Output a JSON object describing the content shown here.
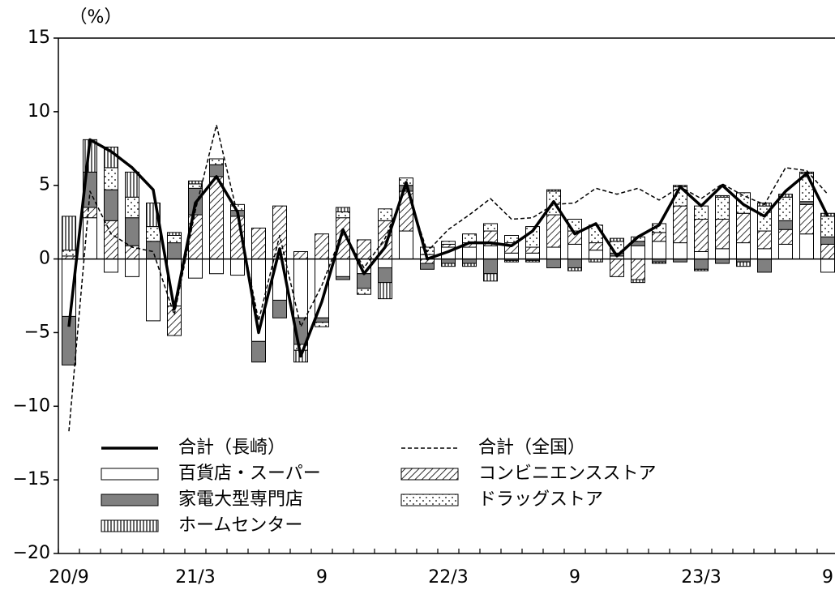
{
  "chart_data": {
    "type": "bar",
    "y_unit": "（%）",
    "categories": [
      "20/9",
      null,
      null,
      null,
      null,
      null,
      "21/3",
      null,
      null,
      null,
      null,
      null,
      "9",
      null,
      null,
      null,
      null,
      null,
      "22/3",
      null,
      null,
      null,
      null,
      null,
      "9",
      null,
      null,
      null,
      null,
      null,
      "23/3",
      null,
      null,
      null,
      null,
      null,
      "9"
    ],
    "ylim": [
      -20,
      15
    ],
    "yticks": [
      {
        "value": -20,
        "label": "−20"
      },
      {
        "value": -15,
        "label": "−15"
      },
      {
        "value": -10,
        "label": "−10"
      },
      {
        "value": -5,
        "label": "−5"
      },
      0,
      5,
      10,
      15
    ],
    "series": [
      {
        "name": "合計（長崎）",
        "type": "line",
        "dash": "solid",
        "color": "#000000",
        "values": [
          -4.6,
          8.1,
          7.3,
          6.2,
          4.7,
          -3.4,
          3.8,
          5.6,
          3.2,
          -5.0,
          0.7,
          -6.6,
          -2.9,
          2.0,
          -1.0,
          0.8,
          5.2,
          0.0,
          0.5,
          1.1,
          1.1,
          0.9,
          1.9,
          3.9,
          1.7,
          2.4,
          0.2,
          1.5,
          2.3,
          4.9,
          3.6,
          5.0,
          3.7,
          2.9,
          4.6,
          5.8,
          2.9
        ]
      },
      {
        "name": "合計（全国）",
        "type": "line",
        "dash": "dashed",
        "color": "#000000",
        "values": [
          -11.7,
          4.6,
          1.7,
          0.8,
          0.5,
          -3.8,
          3.3,
          9.1,
          3.0,
          -4.2,
          1.6,
          -4.6,
          -1.8,
          1.9,
          -0.6,
          1.4,
          4.9,
          0.5,
          2.0,
          3.0,
          4.1,
          2.7,
          2.8,
          3.7,
          3.8,
          4.8,
          4.4,
          4.8,
          4.0,
          4.9,
          4.1,
          5.1,
          4.3,
          3.7,
          6.2,
          6.0,
          4.4
        ]
      },
      {
        "name": "百貨店・スーパー",
        "type": "bar",
        "pattern": "plain",
        "color": "#ffffff",
        "values": [
          -3.9,
          2.8,
          -0.9,
          -1.2,
          -4.2,
          -3.2,
          -1.3,
          -1.0,
          -1.1,
          -5.6,
          -2.8,
          -4.0,
          -4.0,
          -1.2,
          -1.0,
          -0.6,
          1.9,
          0.3,
          0.8,
          0.8,
          0.9,
          0.4,
          0.4,
          0.8,
          1.0,
          0.6,
          0.2,
          0.9,
          1.2,
          1.1,
          0.5,
          0.7,
          1.1,
          0.7,
          1.0,
          1.7,
          -0.9
        ]
      },
      {
        "name": "コンビニエンスストア",
        "type": "bar",
        "pattern": "diagonal",
        "color": "#ffffff",
        "values": [
          0.2,
          0.7,
          2.6,
          0.9,
          0.0,
          -2.0,
          3.0,
          5.6,
          2.9,
          2.1,
          3.6,
          0.5,
          1.7,
          2.8,
          1.3,
          2.6,
          2.7,
          -0.3,
          0.2,
          0.3,
          1.0,
          0.7,
          0.4,
          2.2,
          0.9,
          0.5,
          -1.2,
          -1.4,
          0.6,
          2.5,
          2.2,
          2.0,
          2.0,
          1.2,
          1.0,
          2.0,
          1.0
        ]
      },
      {
        "name": "家電大型専門店",
        "type": "bar",
        "pattern": "plain",
        "color": "#808080",
        "values": [
          -3.3,
          2.4,
          2.1,
          1.9,
          1.2,
          1.1,
          1.8,
          0.8,
          0.4,
          -1.4,
          -1.2,
          -1.8,
          -0.3,
          -0.2,
          -1.0,
          -1.0,
          0.4,
          -0.4,
          -0.3,
          -0.3,
          -1.0,
          -0.1,
          -0.1,
          -0.6,
          -0.6,
          0.0,
          0.2,
          0.3,
          -0.2,
          -0.2,
          -0.7,
          -0.3,
          -0.2,
          -0.9,
          0.6,
          0.2,
          0.5
        ]
      },
      {
        "name": "ドラッグストア",
        "type": "bar",
        "pattern": "dots",
        "color": "#ffffff",
        "values": [
          0.4,
          0.0,
          1.5,
          1.4,
          1.0,
          0.5,
          0.3,
          0.4,
          0.4,
          0.0,
          0.0,
          -0.4,
          -0.3,
          0.4,
          -0.4,
          0.8,
          0.5,
          0.5,
          0.2,
          0.6,
          0.5,
          0.5,
          1.4,
          1.6,
          0.8,
          1.2,
          0.8,
          0.3,
          0.6,
          1.3,
          0.9,
          1.5,
          1.4,
          1.7,
          1.6,
          1.9,
          1.4
        ]
      },
      {
        "name": "ホームセンター",
        "type": "bar",
        "pattern": "vertical",
        "color": "#ffffff",
        "values": [
          2.3,
          2.2,
          1.4,
          1.7,
          1.6,
          0.2,
          0.2,
          0.0,
          0.0,
          0.0,
          0.0,
          -0.8,
          0.0,
          0.3,
          0.0,
          -1.1,
          0.0,
          0.0,
          -0.2,
          -0.2,
          -0.5,
          -0.1,
          -0.1,
          0.1,
          -0.2,
          -0.2,
          0.2,
          -0.2,
          -0.1,
          0.1,
          -0.1,
          0.1,
          -0.3,
          0.2,
          0.2,
          0.1,
          0.2
        ]
      }
    ]
  }
}
